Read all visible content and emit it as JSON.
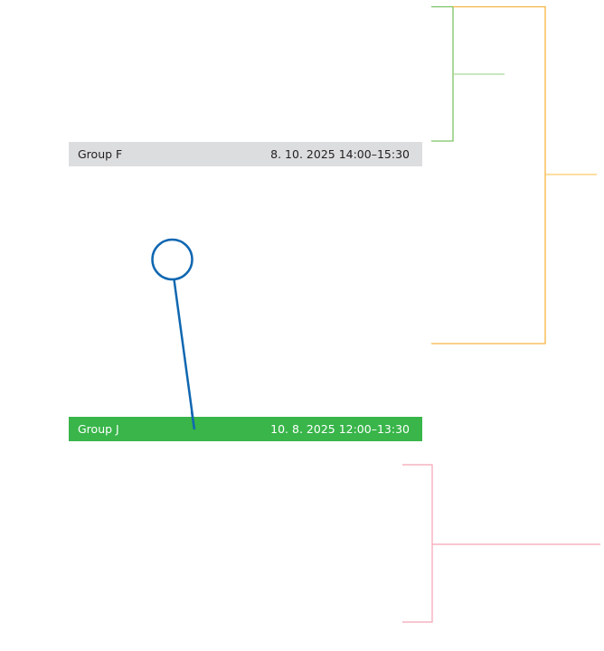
{
  "groups": [
    {
      "label": "Group F",
      "datetime": "8. 10. 2025 14:00–15:30",
      "color": "#dcddde"
    },
    {
      "label": "Group J",
      "datetime": "10. 8. 2025 12:00–13:30",
      "color": "#39b54a"
    }
  ],
  "colors": {
    "green_bracket": "#a8d99a",
    "orange_bracket": "#fbc96b",
    "pink_bracket": "#f4a3b4",
    "pointer": "#0f67b1"
  }
}
